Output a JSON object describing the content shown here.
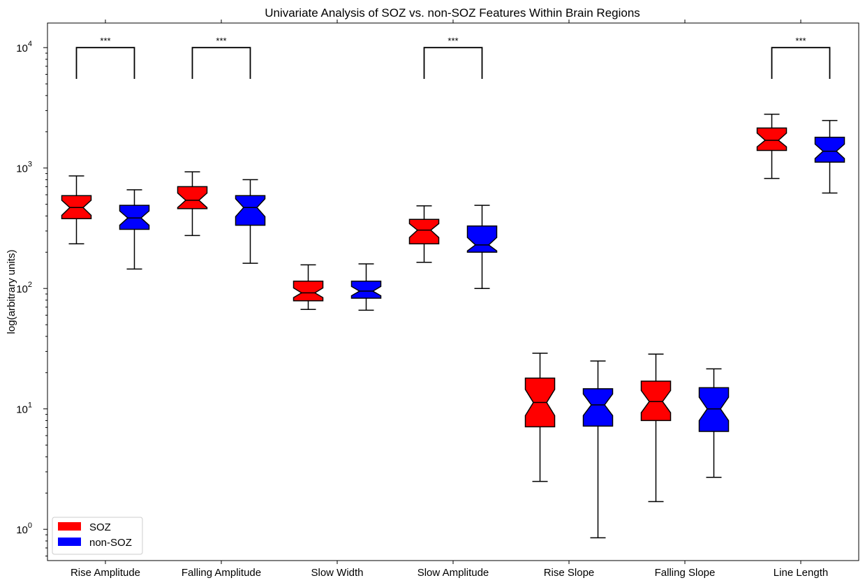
{
  "chart_data": {
    "type": "boxplot",
    "title": "Univariate Analysis of SOZ vs. non-SOZ Features Within Brain Regions",
    "xlabel": "",
    "ylabel": "log(arbitrary units)",
    "yscale": "log",
    "ylim": [
      0.55,
      16000
    ],
    "grid": false,
    "legend_position": "bottom-left",
    "yticks": [
      {
        "value": 1,
        "base": "10",
        "exp": "0"
      },
      {
        "value": 10,
        "base": "10",
        "exp": "1"
      },
      {
        "value": 100,
        "base": "10",
        "exp": "2"
      },
      {
        "value": 1000,
        "base": "10",
        "exp": "3"
      },
      {
        "value": 10000,
        "base": "10",
        "exp": "4"
      }
    ],
    "categories": [
      "Rise Amplitude",
      "Falling Amplitude",
      "Slow Width",
      "Slow Amplitude",
      "Rise Slope",
      "Falling Slope",
      "Line Length"
    ],
    "series": [
      {
        "name": "SOZ",
        "color": "#ff0000",
        "boxes": [
          {
            "whislo": 235,
            "q1": 380,
            "med": 470,
            "notchlo": 405,
            "notchhi": 540,
            "q3": 590,
            "whishi": 860
          },
          {
            "whislo": 275,
            "q1": 460,
            "med": 540,
            "notchlo": 470,
            "notchhi": 620,
            "q3": 700,
            "whishi": 930
          },
          {
            "whislo": 67,
            "q1": 79,
            "med": 92,
            "notchlo": 84,
            "notchhi": 101,
            "q3": 115,
            "whishi": 157
          },
          {
            "whislo": 165,
            "q1": 235,
            "med": 305,
            "notchlo": 265,
            "notchhi": 345,
            "q3": 375,
            "whishi": 485
          },
          {
            "whislo": 2.5,
            "q1": 7.1,
            "med": 11.3,
            "notchlo": 8.8,
            "notchhi": 14.5,
            "q3": 18.0,
            "whishi": 29.0
          },
          {
            "whislo": 1.7,
            "q1": 8.0,
            "med": 11.5,
            "notchlo": 9.3,
            "notchhi": 14.2,
            "q3": 17.0,
            "whishi": 28.5
          },
          {
            "whislo": 820,
            "q1": 1400,
            "med": 1700,
            "notchlo": 1500,
            "notchhi": 1950,
            "q3": 2150,
            "whishi": 2800
          }
        ]
      },
      {
        "name": "non-SOZ",
        "color": "#0000ff",
        "boxes": [
          {
            "whislo": 145,
            "q1": 310,
            "med": 385,
            "notchlo": 335,
            "notchhi": 440,
            "q3": 490,
            "whishi": 660
          },
          {
            "whislo": 162,
            "q1": 335,
            "med": 470,
            "notchlo": 395,
            "notchhi": 555,
            "q3": 590,
            "whishi": 800
          },
          {
            "whislo": 66,
            "q1": 83,
            "med": 95,
            "notchlo": 87,
            "notchhi": 104,
            "q3": 115,
            "whishi": 160
          },
          {
            "whislo": 100,
            "q1": 200,
            "med": 230,
            "notchlo": 205,
            "notchhi": 265,
            "q3": 330,
            "whishi": 490
          },
          {
            "whislo": 0.85,
            "q1": 7.2,
            "med": 10.8,
            "notchlo": 8.8,
            "notchhi": 13.3,
            "q3": 14.7,
            "whishi": 25.0
          },
          {
            "whislo": 2.7,
            "q1": 6.5,
            "med": 10.0,
            "notchlo": 8.0,
            "notchhi": 12.5,
            "q3": 15.0,
            "whishi": 21.5
          },
          {
            "whislo": 620,
            "q1": 1120,
            "med": 1380,
            "notchlo": 1200,
            "notchhi": 1580,
            "q3": 1800,
            "whishi": 2480
          }
        ]
      }
    ],
    "significance": [
      {
        "category_index": 0,
        "label": "***",
        "y_bottom": 5500,
        "y_top": 10000
      },
      {
        "category_index": 1,
        "label": "***",
        "y_bottom": 5500,
        "y_top": 10000
      },
      {
        "category_index": 3,
        "label": "***",
        "y_bottom": 5500,
        "y_top": 10000
      },
      {
        "category_index": 6,
        "label": "***",
        "y_bottom": 5500,
        "y_top": 10000
      }
    ]
  }
}
